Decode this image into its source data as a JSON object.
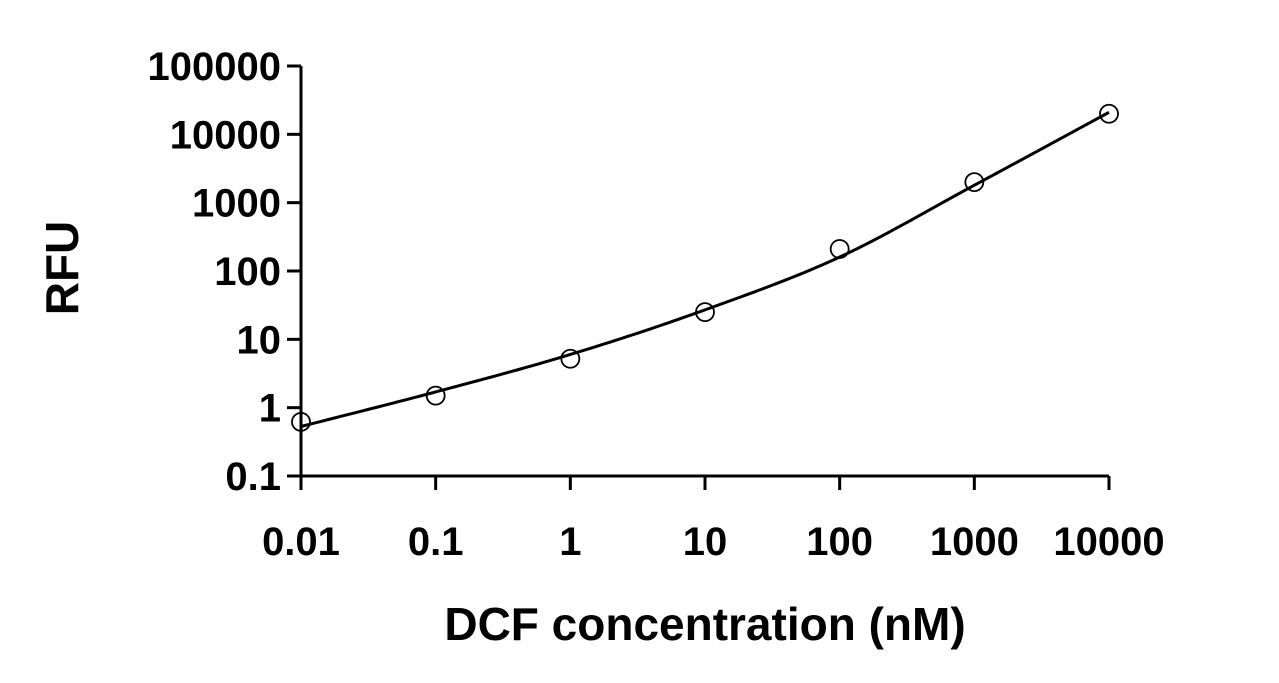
{
  "chart_data": {
    "type": "scatter",
    "title": "",
    "xlabel": "DCF concentration (nM)",
    "ylabel": "RFU",
    "x_scale": "log",
    "y_scale": "log",
    "xlim": [
      0.01,
      10000
    ],
    "ylim": [
      0.1,
      100000
    ],
    "x_ticks": [
      0.01,
      0.1,
      1,
      10,
      100,
      1000,
      10000
    ],
    "x_tick_labels": [
      "0.01",
      "0.1",
      "1",
      "10",
      "100",
      "1000",
      "10000"
    ],
    "y_ticks": [
      0.1,
      1,
      10,
      100,
      1000,
      10000,
      100000
    ],
    "y_tick_labels": [
      "0.1",
      "1",
      "10",
      "100",
      "1000",
      "10000",
      "100000"
    ],
    "grid": false,
    "legend": "none",
    "series": [
      {
        "type": "scatter",
        "marker": "open-circle",
        "x": [
          0.01,
          0.1,
          1,
          10,
          100,
          1000,
          10000
        ],
        "y": [
          0.62,
          1.5,
          5.2,
          25,
          210,
          2000,
          20000
        ]
      },
      {
        "type": "line",
        "style": "fit-curve",
        "x": [
          0.01,
          0.1,
          1,
          10,
          100,
          1000,
          10000
        ],
        "y": [
          0.53,
          1.7,
          6.0,
          27,
          160,
          1800,
          21000
        ]
      }
    ],
    "colors": {
      "line": "#000000",
      "marker": "#000000",
      "background": "#ffffff"
    }
  }
}
